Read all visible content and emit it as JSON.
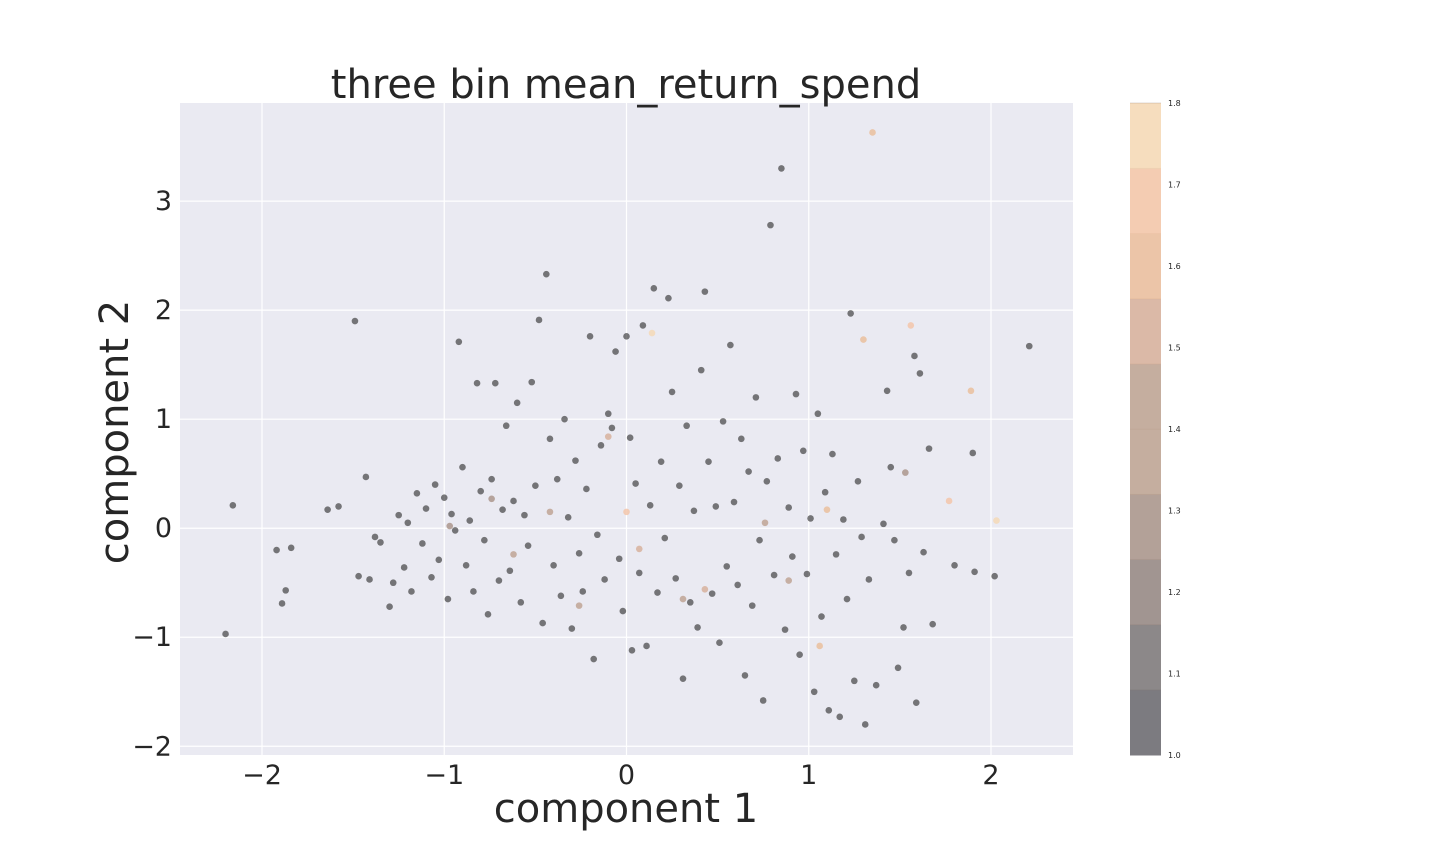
{
  "chart_data": {
    "type": "scatter",
    "title": "three bin mean_return_spend",
    "xlabel": "component 1",
    "ylabel": "component 2",
    "xlim": [
      -2.45,
      2.45
    ],
    "ylim": [
      -2.08,
      3.9
    ],
    "xticks": [
      -2,
      -1,
      0,
      1,
      2
    ],
    "xtick_labels": [
      "−2",
      "−1",
      "0",
      "1",
      "2"
    ],
    "yticks": [
      -2,
      -1,
      0,
      1,
      2,
      3
    ],
    "ytick_labels": [
      "−2",
      "−1",
      "0",
      "1",
      "2",
      "3"
    ],
    "grid": true,
    "colorbar": {
      "min": 1.0,
      "max": 1.8,
      "ticks": [
        1.0,
        1.1,
        1.2,
        1.3,
        1.4,
        1.5,
        1.6,
        1.7,
        1.8
      ],
      "tick_labels": [
        "1.0",
        "1.1",
        "1.2",
        "1.3",
        "1.4",
        "1.5",
        "1.6",
        "1.7",
        "1.8"
      ],
      "colors": [
        "#6e6d72",
        "#807b7c",
        "#978a85",
        "#ab978d",
        "#bfa595",
        "#d7b19d",
        "#eabf9e",
        "#f3c6aa",
        "#f5d9b7"
      ]
    },
    "points": [
      [
        -2.2,
        -0.97,
        1.0
      ],
      [
        -2.16,
        0.21,
        1.0
      ],
      [
        -1.92,
        -0.2,
        1.0
      ],
      [
        -1.89,
        -0.69,
        1.0
      ],
      [
        -1.87,
        -0.57,
        1.0
      ],
      [
        -1.84,
        -0.18,
        1.0
      ],
      [
        -1.64,
        0.17,
        1.0
      ],
      [
        -1.58,
        0.2,
        1.0
      ],
      [
        -1.49,
        1.9,
        1.0
      ],
      [
        -1.47,
        -0.44,
        1.0
      ],
      [
        -1.43,
        0.47,
        1.0
      ],
      [
        -1.41,
        -0.47,
        1.0
      ],
      [
        -1.38,
        -0.08,
        1.0
      ],
      [
        -1.35,
        -0.13,
        1.0
      ],
      [
        -1.3,
        -0.72,
        1.0
      ],
      [
        -1.28,
        -0.5,
        1.0
      ],
      [
        -1.25,
        0.12,
        1.0
      ],
      [
        -1.22,
        -0.36,
        1.0
      ],
      [
        -1.2,
        0.05,
        1.0
      ],
      [
        -1.18,
        -0.58,
        1.0
      ],
      [
        -1.15,
        0.32,
        1.0
      ],
      [
        -1.12,
        -0.14,
        1.0
      ],
      [
        -1.1,
        0.18,
        1.0
      ],
      [
        -1.07,
        -0.45,
        1.0
      ],
      [
        -1.05,
        0.4,
        1.0
      ],
      [
        -1.03,
        -0.29,
        1.0
      ],
      [
        -1.0,
        0.28,
        1.0
      ],
      [
        -0.98,
        -0.65,
        1.0
      ],
      [
        -0.96,
        0.13,
        1.0
      ],
      [
        -0.94,
        -0.02,
        1.0
      ],
      [
        -0.92,
        1.71,
        1.0
      ],
      [
        -0.9,
        0.56,
        1.0
      ],
      [
        -0.88,
        -0.34,
        1.0
      ],
      [
        -0.86,
        0.07,
        1.0
      ],
      [
        -0.84,
        -0.58,
        1.0
      ],
      [
        -0.82,
        1.33,
        1.0
      ],
      [
        -0.8,
        0.34,
        1.0
      ],
      [
        -0.78,
        -0.11,
        1.0
      ],
      [
        -0.76,
        -0.79,
        1.0
      ],
      [
        -0.74,
        0.45,
        1.0
      ],
      [
        -0.72,
        1.33,
        1.0
      ],
      [
        -0.7,
        -0.48,
        1.0
      ],
      [
        -0.68,
        0.17,
        1.0
      ],
      [
        -0.66,
        0.94,
        1.0
      ],
      [
        -0.64,
        -0.39,
        1.0
      ],
      [
        -0.62,
        0.25,
        1.0
      ],
      [
        -0.6,
        1.15,
        1.0
      ],
      [
        -0.58,
        -0.68,
        1.0
      ],
      [
        -0.56,
        0.12,
        1.0
      ],
      [
        -0.54,
        -0.16,
        1.0
      ],
      [
        -0.52,
        1.34,
        1.0
      ],
      [
        -0.5,
        0.39,
        1.0
      ],
      [
        -0.48,
        1.91,
        1.0
      ],
      [
        -0.46,
        -0.87,
        1.0
      ],
      [
        -0.44,
        2.33,
        1.0
      ],
      [
        -0.42,
        0.82,
        1.0
      ],
      [
        -0.4,
        -0.34,
        1.0
      ],
      [
        -0.38,
        0.45,
        1.0
      ],
      [
        -0.36,
        -0.62,
        1.0
      ],
      [
        -0.34,
        1.0,
        1.0
      ],
      [
        -0.32,
        0.1,
        1.0
      ],
      [
        -0.3,
        -0.92,
        1.0
      ],
      [
        -0.28,
        0.62,
        1.0
      ],
      [
        -0.26,
        -0.23,
        1.0
      ],
      [
        -0.24,
        -0.58,
        1.0
      ],
      [
        -0.22,
        0.36,
        1.0
      ],
      [
        -0.2,
        1.76,
        1.0
      ],
      [
        -0.18,
        -1.2,
        1.0
      ],
      [
        -0.16,
        -0.06,
        1.0
      ],
      [
        -0.14,
        0.76,
        1.0
      ],
      [
        -0.12,
        -0.47,
        1.0
      ],
      [
        -0.1,
        1.05,
        1.0
      ],
      [
        -0.08,
        0.92,
        1.0
      ],
      [
        -0.06,
        1.62,
        1.0
      ],
      [
        -0.04,
        -0.28,
        1.0
      ],
      [
        -0.02,
        -0.76,
        1.0
      ],
      [
        0.0,
        1.76,
        1.0
      ],
      [
        0.02,
        0.83,
        1.0
      ],
      [
        0.03,
        -1.12,
        1.0
      ],
      [
        0.05,
        0.41,
        1.0
      ],
      [
        0.07,
        -0.41,
        1.0
      ],
      [
        0.09,
        1.86,
        1.0
      ],
      [
        0.11,
        -1.08,
        1.0
      ],
      [
        0.13,
        0.21,
        1.0
      ],
      [
        0.15,
        2.2,
        1.0
      ],
      [
        0.17,
        -0.59,
        1.0
      ],
      [
        0.19,
        0.61,
        1.0
      ],
      [
        0.21,
        -0.09,
        1.0
      ],
      [
        0.23,
        2.11,
        1.0
      ],
      [
        0.25,
        1.25,
        1.0
      ],
      [
        0.27,
        -0.46,
        1.0
      ],
      [
        0.29,
        0.39,
        1.0
      ],
      [
        0.31,
        -1.38,
        1.0
      ],
      [
        0.33,
        0.94,
        1.0
      ],
      [
        0.35,
        -0.68,
        1.0
      ],
      [
        0.37,
        0.16,
        1.0
      ],
      [
        0.39,
        -0.91,
        1.0
      ],
      [
        0.41,
        1.45,
        1.0
      ],
      [
        0.43,
        2.17,
        1.0
      ],
      [
        0.45,
        0.61,
        1.0
      ],
      [
        0.47,
        -0.6,
        1.0
      ],
      [
        0.49,
        0.2,
        1.0
      ],
      [
        0.51,
        -1.05,
        1.0
      ],
      [
        0.53,
        0.98,
        1.0
      ],
      [
        0.55,
        -0.35,
        1.0
      ],
      [
        0.57,
        1.68,
        1.0
      ],
      [
        0.59,
        0.24,
        1.0
      ],
      [
        0.61,
        -0.52,
        1.0
      ],
      [
        0.63,
        0.82,
        1.0
      ],
      [
        0.65,
        -1.35,
        1.0
      ],
      [
        0.67,
        0.52,
        1.0
      ],
      [
        0.69,
        -0.71,
        1.0
      ],
      [
        0.71,
        1.2,
        1.0
      ],
      [
        0.73,
        -0.11,
        1.0
      ],
      [
        0.75,
        -1.58,
        1.0
      ],
      [
        0.77,
        0.43,
        1.0
      ],
      [
        0.79,
        2.78,
        1.0
      ],
      [
        0.81,
        -0.43,
        1.0
      ],
      [
        0.83,
        0.64,
        1.0
      ],
      [
        0.85,
        3.3,
        1.0
      ],
      [
        0.87,
        -0.93,
        1.0
      ],
      [
        0.89,
        0.19,
        1.0
      ],
      [
        0.91,
        -0.26,
        1.0
      ],
      [
        0.93,
        1.23,
        1.0
      ],
      [
        0.95,
        -1.16,
        1.0
      ],
      [
        0.97,
        0.71,
        1.0
      ],
      [
        0.99,
        -0.42,
        1.0
      ],
      [
        1.01,
        0.09,
        1.0
      ],
      [
        1.03,
        -1.5,
        1.0
      ],
      [
        1.05,
        1.05,
        1.0
      ],
      [
        1.07,
        -0.81,
        1.0
      ],
      [
        1.09,
        0.33,
        1.0
      ],
      [
        1.11,
        -1.67,
        1.0
      ],
      [
        1.13,
        0.68,
        1.0
      ],
      [
        1.15,
        -0.24,
        1.0
      ],
      [
        1.17,
        -1.73,
        1.0
      ],
      [
        1.19,
        0.08,
        1.0
      ],
      [
        1.21,
        -0.65,
        1.0
      ],
      [
        1.23,
        1.97,
        1.0
      ],
      [
        1.25,
        -1.4,
        1.0
      ],
      [
        1.27,
        0.43,
        1.0
      ],
      [
        1.29,
        -0.08,
        1.0
      ],
      [
        1.31,
        -1.8,
        1.0
      ],
      [
        1.33,
        -0.47,
        1.0
      ],
      [
        1.37,
        -1.44,
        1.0
      ],
      [
        1.41,
        0.04,
        1.0
      ],
      [
        1.43,
        1.26,
        1.0
      ],
      [
        1.45,
        0.56,
        1.0
      ],
      [
        1.47,
        -0.11,
        1.0
      ],
      [
        1.49,
        -1.28,
        1.0
      ],
      [
        1.52,
        -0.91,
        1.0
      ],
      [
        1.55,
        -0.41,
        1.0
      ],
      [
        1.58,
        1.58,
        1.0
      ],
      [
        1.59,
        -1.6,
        1.0
      ],
      [
        1.61,
        1.42,
        1.0
      ],
      [
        1.63,
        -0.22,
        1.0
      ],
      [
        1.66,
        0.73,
        1.0
      ],
      [
        1.68,
        -0.88,
        1.0
      ],
      [
        1.8,
        -0.34,
        1.0
      ],
      [
        1.9,
        0.69,
        1.0
      ],
      [
        1.91,
        -0.4,
        1.0
      ],
      [
        2.02,
        -0.44,
        1.0
      ],
      [
        2.21,
        1.67,
        1.0
      ],
      [
        -0.97,
        0.02,
        1.3
      ],
      [
        -0.74,
        0.27,
        1.3
      ],
      [
        -0.62,
        -0.24,
        1.4
      ],
      [
        -0.42,
        0.15,
        1.4
      ],
      [
        -0.26,
        -0.71,
        1.4
      ],
      [
        -0.1,
        0.84,
        1.5
      ],
      [
        0.07,
        -0.19,
        1.5
      ],
      [
        0.31,
        -0.65,
        1.4
      ],
      [
        0.43,
        -0.56,
        1.5
      ],
      [
        0.76,
        0.05,
        1.4
      ],
      [
        0.89,
        -0.48,
        1.4
      ],
      [
        1.06,
        -1.08,
        1.6
      ],
      [
        1.1,
        0.17,
        1.6
      ],
      [
        1.53,
        0.51,
        1.3
      ],
      [
        0.0,
        0.15,
        1.7
      ],
      [
        0.14,
        1.79,
        1.8
      ],
      [
        1.3,
        1.73,
        1.6
      ],
      [
        1.35,
        3.63,
        1.6
      ],
      [
        1.56,
        1.86,
        1.7
      ],
      [
        1.77,
        0.25,
        1.7
      ],
      [
        1.89,
        1.26,
        1.6
      ],
      [
        2.03,
        0.07,
        1.8
      ]
    ]
  }
}
